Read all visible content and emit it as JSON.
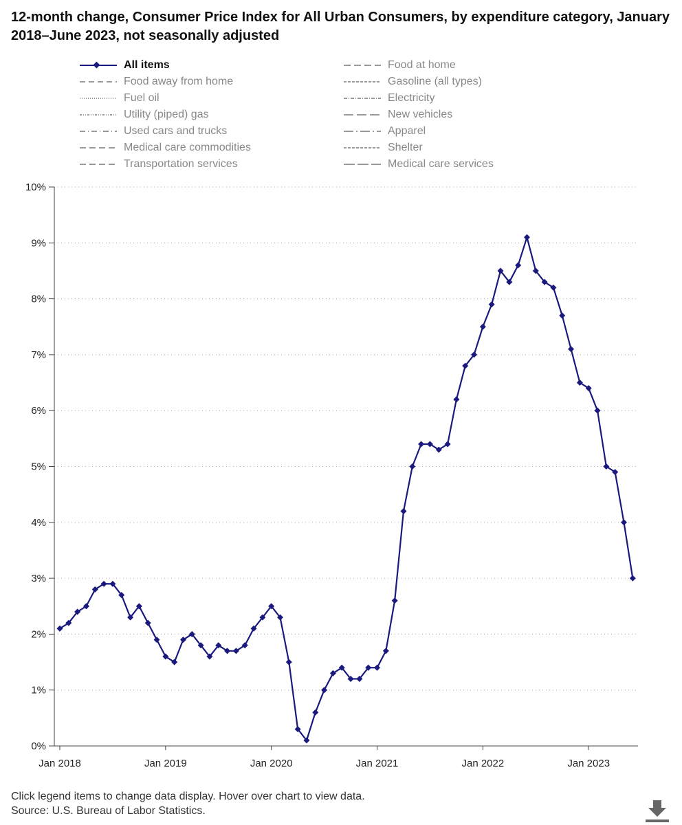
{
  "title": "12-month change, Consumer Price Index for All Urban Consumers, by expenditure category, January 2018–June 2023, not seasonally adjusted",
  "legend": [
    {
      "label": "All items",
      "dash": "solid",
      "active": true
    },
    {
      "label": "Food at home",
      "dash": "10,5"
    },
    {
      "label": "Food away from home",
      "dash": "8,5"
    },
    {
      "label": "Gasoline (all types)",
      "dash": "4,2"
    },
    {
      "label": "Fuel oil",
      "dash": "1,2"
    },
    {
      "label": "Electricity",
      "dash": "5,2,1,2"
    },
    {
      "label": "Utility (piped) gas",
      "dash": "3,2,1,2,1,2"
    },
    {
      "label": "New vehicles",
      "dash": "14,5"
    },
    {
      "label": "Used cars and trucks",
      "dash": "8,4,1,4"
    },
    {
      "label": "Apparel",
      "dash": "14,4,2,4"
    },
    {
      "label": "Medical care commodities",
      "dash": "9,5"
    },
    {
      "label": "Shelter",
      "dash": "4,2"
    },
    {
      "label": "Transportation services",
      "dash": "9,5"
    },
    {
      "label": "Medical care services",
      "dash": "16,4"
    }
  ],
  "chart_data": {
    "type": "line",
    "x": [
      "Jan 2018",
      "Feb 2018",
      "Mar 2018",
      "Apr 2018",
      "May 2018",
      "Jun 2018",
      "Jul 2018",
      "Aug 2018",
      "Sep 2018",
      "Oct 2018",
      "Nov 2018",
      "Dec 2018",
      "Jan 2019",
      "Feb 2019",
      "Mar 2019",
      "Apr 2019",
      "May 2019",
      "Jun 2019",
      "Jul 2019",
      "Aug 2019",
      "Sep 2019",
      "Oct 2019",
      "Nov 2019",
      "Dec 2019",
      "Jan 2020",
      "Feb 2020",
      "Mar 2020",
      "Apr 2020",
      "May 2020",
      "Jun 2020",
      "Jul 2020",
      "Aug 2020",
      "Sep 2020",
      "Oct 2020",
      "Nov 2020",
      "Dec 2020",
      "Jan 2021",
      "Feb 2021",
      "Mar 2021",
      "Apr 2021",
      "May 2021",
      "Jun 2021",
      "Jul 2021",
      "Aug 2021",
      "Sep 2021",
      "Oct 2021",
      "Nov 2021",
      "Dec 2021",
      "Jan 2022",
      "Feb 2022",
      "Mar 2022",
      "Apr 2022",
      "May 2022",
      "Jun 2022",
      "Jul 2022",
      "Aug 2022",
      "Sep 2022",
      "Oct 2022",
      "Nov 2022",
      "Dec 2022",
      "Jan 2023",
      "Feb 2023",
      "Mar 2023",
      "Apr 2023",
      "May 2023",
      "Jun 2023"
    ],
    "series": [
      {
        "name": "All items",
        "color": "#1a1a7e",
        "values": [
          2.1,
          2.2,
          2.4,
          2.5,
          2.8,
          2.9,
          2.9,
          2.7,
          2.3,
          2.5,
          2.2,
          1.9,
          1.6,
          1.5,
          1.9,
          2.0,
          1.8,
          1.6,
          1.8,
          1.7,
          1.7,
          1.8,
          2.1,
          2.3,
          2.5,
          2.3,
          1.5,
          0.3,
          0.1,
          0.6,
          1.0,
          1.3,
          1.4,
          1.2,
          1.2,
          1.4,
          1.4,
          1.7,
          2.6,
          4.2,
          5.0,
          5.4,
          5.4,
          5.3,
          5.4,
          6.2,
          6.8,
          7.0,
          7.5,
          7.9,
          8.5,
          8.3,
          8.6,
          9.1,
          8.5,
          8.3,
          8.2,
          7.7,
          7.1,
          6.5,
          6.4,
          6.0,
          5.0,
          4.9,
          4.0,
          3.0
        ]
      }
    ],
    "x_tick_labels": [
      "Jan 2018",
      "Jan 2019",
      "Jan 2020",
      "Jan 2021",
      "Jan 2022",
      "Jan 2023"
    ],
    "y_tick_labels": [
      "0%",
      "1%",
      "2%",
      "3%",
      "4%",
      "5%",
      "6%",
      "7%",
      "8%",
      "9%",
      "10%"
    ],
    "ylim": [
      0,
      10
    ],
    "grid": "horizontal dotted",
    "legend_position": "top"
  },
  "footer": {
    "note": "Click legend items to change data display. Hover over chart to view data.",
    "source": "Source: U.S. Bureau of Labor Statistics."
  },
  "icons": {
    "download": "download-icon"
  }
}
